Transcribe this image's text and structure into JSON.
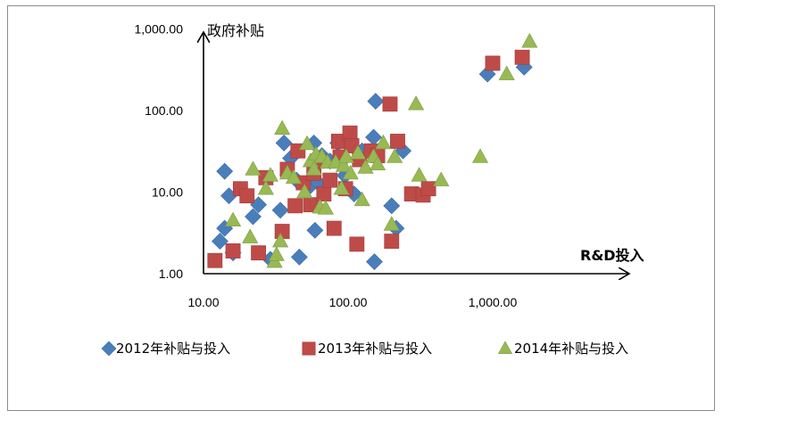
{
  "chart_data": {
    "type": "scatter",
    "x_scale": "log",
    "y_scale": "log",
    "xlabel": "R&D投入",
    "ylabel": "政府补贴",
    "x_ticks": [
      {
        "value": 10,
        "label": "10.00"
      },
      {
        "value": 100,
        "label": "100.00"
      },
      {
        "value": 1000,
        "label": "1,000.00"
      }
    ],
    "y_ticks": [
      {
        "value": 1,
        "label": "1.00"
      },
      {
        "value": 10,
        "label": "10.00"
      },
      {
        "value": 100,
        "label": "100.00"
      },
      {
        "value": 1000,
        "label": "1,000.00"
      }
    ],
    "legend_position": "bottom",
    "series": [
      {
        "name": "2012年补贴与投入",
        "marker": "diamond",
        "color": "#4a7ebb",
        "points": [
          [
            14,
            18
          ],
          [
            15,
            9
          ],
          [
            13,
            2.5
          ],
          [
            14,
            3.6
          ],
          [
            16,
            1.8
          ],
          [
            22,
            5
          ],
          [
            24,
            7
          ],
          [
            29,
            1.5
          ],
          [
            34,
            6
          ],
          [
            36,
            40
          ],
          [
            40,
            26
          ],
          [
            44,
            14
          ],
          [
            46,
            1.6
          ],
          [
            55,
            12
          ],
          [
            58,
            40
          ],
          [
            59,
            3.4
          ],
          [
            62,
            13
          ],
          [
            66,
            28
          ],
          [
            75,
            24
          ],
          [
            85,
            40
          ],
          [
            95,
            16
          ],
          [
            110,
            9.5
          ],
          [
            125,
            32
          ],
          [
            150,
            47
          ],
          [
            152,
            1.4
          ],
          [
            155,
            130
          ],
          [
            200,
            6.8
          ],
          [
            215,
            3.6
          ],
          [
            240,
            32
          ],
          [
            920,
            280
          ],
          [
            1650,
            340
          ]
        ]
      },
      {
        "name": "2013年补贴与投入",
        "marker": "square",
        "color": "#be4b48",
        "points": [
          [
            12,
            1.45
          ],
          [
            16,
            1.9
          ],
          [
            18,
            11
          ],
          [
            20,
            9
          ],
          [
            24,
            1.8
          ],
          [
            27,
            15
          ],
          [
            35,
            3.3
          ],
          [
            38,
            19
          ],
          [
            43,
            6.8
          ],
          [
            45,
            32
          ],
          [
            49,
            13
          ],
          [
            55,
            7
          ],
          [
            58,
            17
          ],
          [
            62,
            24
          ],
          [
            68,
            9.5
          ],
          [
            75,
            14
          ],
          [
            80,
            3.6
          ],
          [
            86,
            42
          ],
          [
            88,
            27
          ],
          [
            96,
            11
          ],
          [
            103,
            53
          ],
          [
            106,
            37
          ],
          [
            115,
            2.3
          ],
          [
            120,
            25
          ],
          [
            145,
            32
          ],
          [
            160,
            28
          ],
          [
            195,
            120
          ],
          [
            200,
            2.5
          ],
          [
            220,
            42
          ],
          [
            275,
            9.5
          ],
          [
            330,
            9.2
          ],
          [
            360,
            11
          ],
          [
            1000,
            380
          ],
          [
            1600,
            450
          ]
        ]
      },
      {
        "name": "2014年补贴与投入",
        "marker": "triangle",
        "color": "#98b954",
        "points": [
          [
            16,
            4.5
          ],
          [
            21,
            2.8
          ],
          [
            22,
            19
          ],
          [
            27,
            11
          ],
          [
            29,
            16
          ],
          [
            31,
            1.4
          ],
          [
            32,
            1.7
          ],
          [
            34,
            2.5
          ],
          [
            35,
            60
          ],
          [
            38,
            17
          ],
          [
            42,
            15
          ],
          [
            50,
            10
          ],
          [
            52,
            39
          ],
          [
            55,
            24
          ],
          [
            58,
            19
          ],
          [
            60,
            29
          ],
          [
            64,
            6.5
          ],
          [
            66,
            27
          ],
          [
            70,
            6.3
          ],
          [
            72,
            23
          ],
          [
            82,
            23
          ],
          [
            90,
            11
          ],
          [
            93,
            21
          ],
          [
            97,
            27
          ],
          [
            104,
            17
          ],
          [
            117,
            30
          ],
          [
            125,
            8
          ],
          [
            132,
            20
          ],
          [
            150,
            27
          ],
          [
            160,
            22
          ],
          [
            175,
            40
          ],
          [
            200,
            4
          ],
          [
            210,
            27
          ],
          [
            295,
            120
          ],
          [
            310,
            16
          ],
          [
            440,
            14
          ],
          [
            820,
            27
          ],
          [
            1250,
            280
          ],
          [
            1800,
            700
          ]
        ]
      }
    ]
  }
}
